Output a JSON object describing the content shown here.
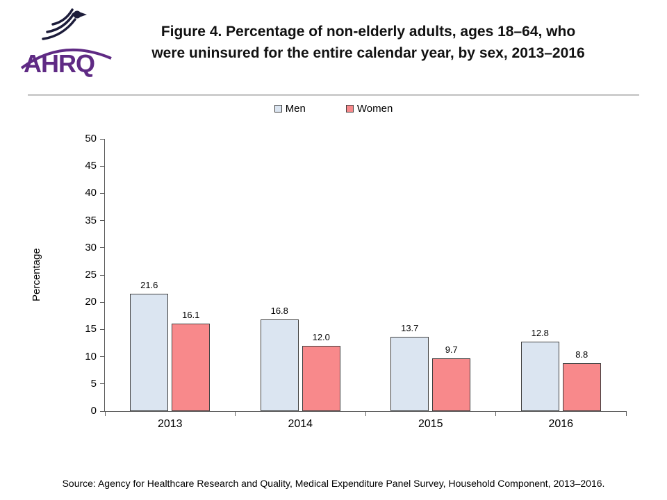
{
  "header": {
    "logo_text": "AHRQ",
    "title_line1": "Figure 4. Percentage of non-elderly adults, ages 18–64, who",
    "title_line2": "were uninsured for the entire calendar year, by sex, 2013–2016"
  },
  "footer": {
    "source": "Source: Agency for Healthcare Research and Quality, Medical Expenditure Panel Survey, Household Component, 2013–2016."
  },
  "chart_data": {
    "type": "bar",
    "title": "Figure 4. Percentage of non-elderly adults, ages 18–64, who were uninsured for the entire calendar year, by sex, 2013–2016",
    "categories": [
      "2013",
      "2014",
      "2015",
      "2016"
    ],
    "series": [
      {
        "name": "Men",
        "color": "#dbe5f1",
        "values": [
          21.6,
          16.8,
          13.7,
          12.8
        ]
      },
      {
        "name": "Women",
        "color": "#f8898b",
        "values": [
          16.1,
          12.0,
          9.7,
          8.8
        ]
      }
    ],
    "xlabel": "",
    "ylabel": "Percentage",
    "ylim": [
      0,
      50
    ],
    "ytick_step": 5,
    "grid": false,
    "legend_position": "top",
    "value_label_decimals": 1
  }
}
